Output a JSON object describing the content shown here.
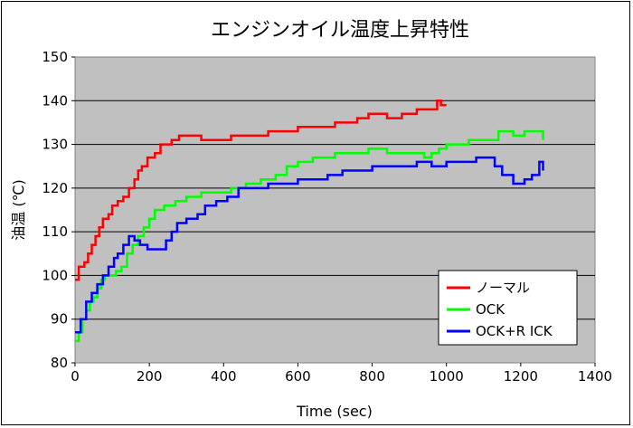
{
  "chart_data": {
    "type": "line",
    "title": "エンジンオイル温度上昇特性",
    "xlabel": "Time (sec)",
    "ylabel": "油温 (℃)",
    "xlim": [
      0,
      1400
    ],
    "ylim": [
      80,
      150
    ],
    "xticks": [
      0,
      200,
      400,
      600,
      800,
      1000,
      1200,
      1400
    ],
    "yticks": [
      80,
      90,
      100,
      110,
      120,
      130,
      140,
      150
    ],
    "grid": "horizontal",
    "legend": "lower-right",
    "plot_background": "#c0c0c0",
    "series": [
      {
        "name": "ノーマル",
        "color": "#ff0000",
        "points": [
          [
            0,
            99
          ],
          [
            10,
            102
          ],
          [
            25,
            103
          ],
          [
            35,
            105
          ],
          [
            45,
            107
          ],
          [
            55,
            109
          ],
          [
            65,
            111
          ],
          [
            75,
            113
          ],
          [
            90,
            114
          ],
          [
            100,
            116
          ],
          [
            115,
            117
          ],
          [
            130,
            118
          ],
          [
            145,
            120
          ],
          [
            160,
            122
          ],
          [
            170,
            124
          ],
          [
            180,
            125
          ],
          [
            195,
            127
          ],
          [
            215,
            128
          ],
          [
            230,
            130
          ],
          [
            260,
            131
          ],
          [
            280,
            132
          ],
          [
            310,
            132
          ],
          [
            340,
            131
          ],
          [
            380,
            131
          ],
          [
            420,
            132
          ],
          [
            480,
            132
          ],
          [
            520,
            133
          ],
          [
            580,
            133
          ],
          [
            600,
            134
          ],
          [
            660,
            134
          ],
          [
            700,
            135
          ],
          [
            740,
            135
          ],
          [
            760,
            136
          ],
          [
            790,
            137
          ],
          [
            840,
            136
          ],
          [
            880,
            137
          ],
          [
            920,
            138
          ],
          [
            960,
            138
          ],
          [
            975,
            140
          ],
          [
            985,
            139
          ],
          [
            1000,
            139
          ]
        ]
      },
      {
        "name": "OCK",
        "color": "#00ff00",
        "points": [
          [
            0,
            85
          ],
          [
            10,
            87
          ],
          [
            20,
            90
          ],
          [
            30,
            92
          ],
          [
            40,
            94
          ],
          [
            50,
            95
          ],
          [
            60,
            97
          ],
          [
            70,
            99
          ],
          [
            80,
            100
          ],
          [
            100,
            100
          ],
          [
            110,
            101
          ],
          [
            125,
            102
          ],
          [
            140,
            105
          ],
          [
            155,
            107
          ],
          [
            170,
            109
          ],
          [
            185,
            111
          ],
          [
            200,
            113
          ],
          [
            215,
            115
          ],
          [
            240,
            116
          ],
          [
            270,
            117
          ],
          [
            300,
            118
          ],
          [
            340,
            119
          ],
          [
            380,
            119
          ],
          [
            420,
            120
          ],
          [
            460,
            121
          ],
          [
            500,
            122
          ],
          [
            540,
            123
          ],
          [
            570,
            125
          ],
          [
            600,
            126
          ],
          [
            640,
            127
          ],
          [
            680,
            127
          ],
          [
            700,
            128
          ],
          [
            760,
            128
          ],
          [
            790,
            129
          ],
          [
            840,
            128
          ],
          [
            900,
            128
          ],
          [
            940,
            127
          ],
          [
            960,
            128
          ],
          [
            980,
            129
          ],
          [
            1000,
            130
          ],
          [
            1060,
            131
          ],
          [
            1100,
            131
          ],
          [
            1140,
            133
          ],
          [
            1180,
            132
          ],
          [
            1210,
            133
          ],
          [
            1240,
            133
          ],
          [
            1260,
            131
          ]
        ]
      },
      {
        "name": "OCK+R ICK",
        "color": "#0000ff",
        "points": [
          [
            0,
            87
          ],
          [
            15,
            90
          ],
          [
            30,
            94
          ],
          [
            45,
            96
          ],
          [
            60,
            98
          ],
          [
            75,
            100
          ],
          [
            90,
            102
          ],
          [
            105,
            104
          ],
          [
            115,
            105
          ],
          [
            130,
            107
          ],
          [
            145,
            109
          ],
          [
            160,
            108
          ],
          [
            175,
            107
          ],
          [
            195,
            106
          ],
          [
            230,
            106
          ],
          [
            245,
            108
          ],
          [
            260,
            110
          ],
          [
            275,
            112
          ],
          [
            300,
            113
          ],
          [
            330,
            114
          ],
          [
            350,
            116
          ],
          [
            380,
            117
          ],
          [
            410,
            118
          ],
          [
            440,
            120
          ],
          [
            480,
            120
          ],
          [
            520,
            121
          ],
          [
            560,
            121
          ],
          [
            600,
            122
          ],
          [
            640,
            122
          ],
          [
            680,
            123
          ],
          [
            720,
            124
          ],
          [
            760,
            124
          ],
          [
            800,
            125
          ],
          [
            840,
            125
          ],
          [
            880,
            125
          ],
          [
            920,
            126
          ],
          [
            960,
            125
          ],
          [
            1000,
            126
          ],
          [
            1040,
            126
          ],
          [
            1080,
            127
          ],
          [
            1110,
            127
          ],
          [
            1130,
            125
          ],
          [
            1150,
            123
          ],
          [
            1180,
            121
          ],
          [
            1210,
            122
          ],
          [
            1230,
            123
          ],
          [
            1250,
            126
          ],
          [
            1260,
            124
          ]
        ]
      }
    ]
  }
}
